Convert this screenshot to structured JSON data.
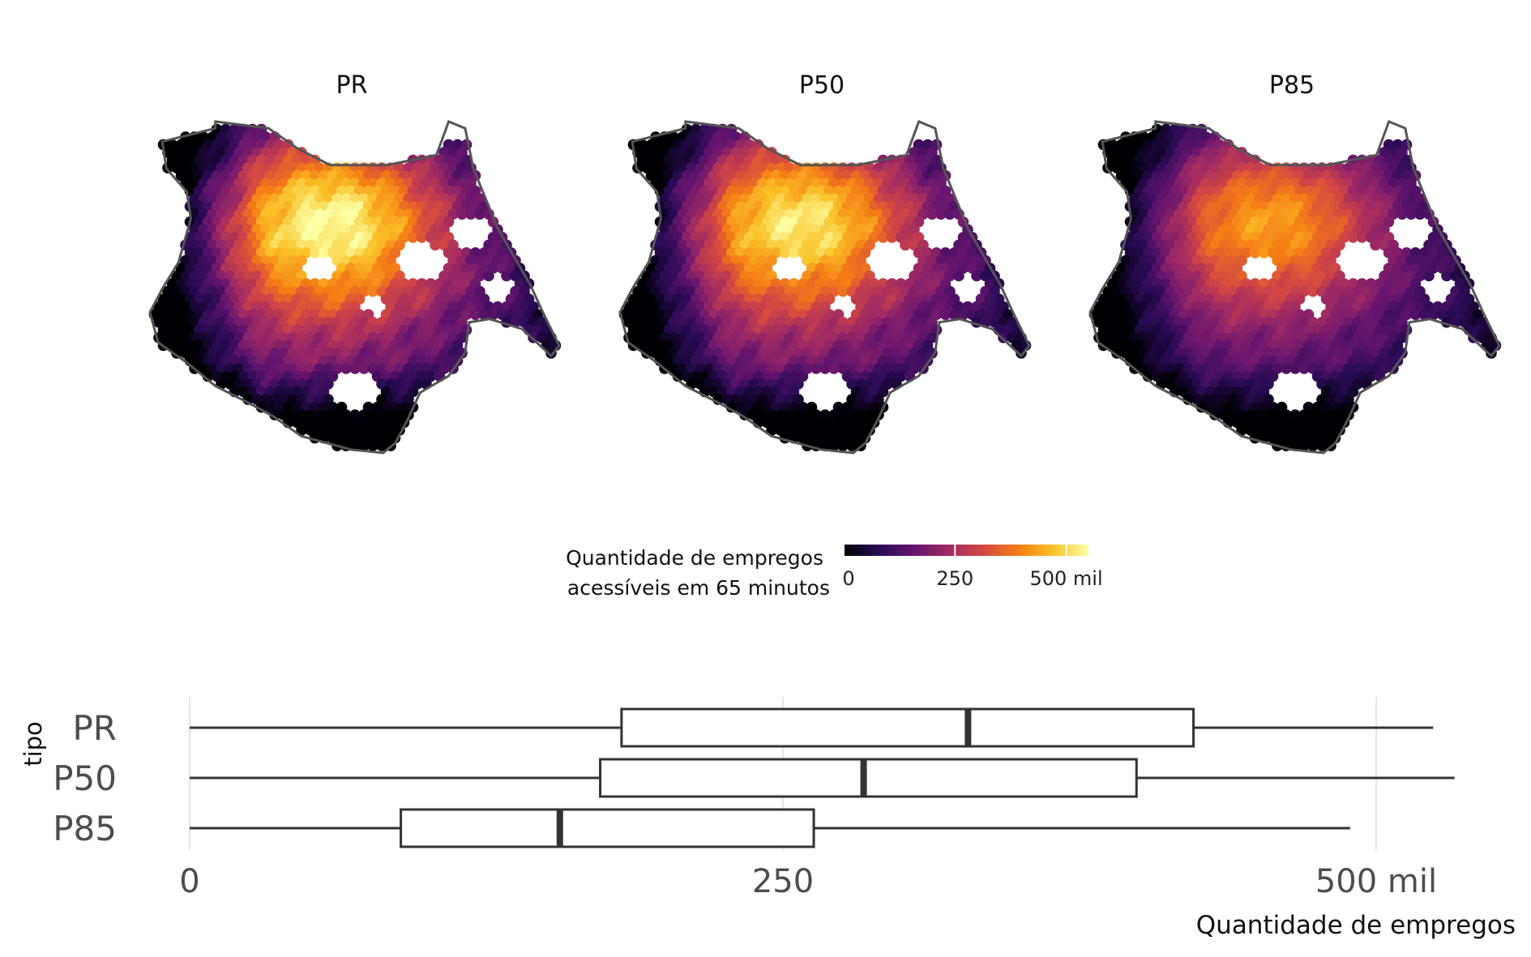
{
  "chart_data": [
    {
      "type": "heatmap",
      "description_kind": "hexagon choropleth map, three facets",
      "facets": [
        {
          "name": "PR",
          "peak_fraction": 1.0
        },
        {
          "name": "P50",
          "peak_fraction": 0.95
        },
        {
          "name": "P85",
          "peak_fraction": 0.78
        }
      ],
      "colorbar": {
        "title_line1": "Quantidade de empregos",
        "title_line2": "acessíveis em 65 minutos",
        "palette": "inferno",
        "colors": [
          "#000004",
          "#280b54",
          "#65156e",
          "#9f2a63",
          "#d44842",
          "#f57d15",
          "#fac228",
          "#fcffa4"
        ],
        "range": [
          0,
          550
        ],
        "ticks": [
          {
            "value": 0,
            "label": "0"
          },
          {
            "value": 250,
            "label": "250"
          },
          {
            "value": 500,
            "label": "500 mil"
          }
        ]
      }
    },
    {
      "type": "box",
      "xlabel": "Quantidade de empregos",
      "ylabel": "tipo",
      "xlim": [
        0,
        530
      ],
      "x_ticks": [
        {
          "value": 0,
          "label": "0"
        },
        {
          "value": 250,
          "label": "250"
        },
        {
          "value": 500,
          "label": "500 mil"
        }
      ],
      "grid": true,
      "categories": [
        "PR",
        "P50",
        "P85"
      ],
      "boxes": [
        {
          "name": "PR",
          "min": 0,
          "q1": 182,
          "median": 328,
          "q3": 423,
          "max": 524
        },
        {
          "name": "P50",
          "min": 0,
          "q1": 173,
          "median": 284,
          "q3": 399,
          "max": 533
        },
        {
          "name": "P85",
          "min": 0,
          "q1": 89,
          "median": 156,
          "q3": 263,
          "max": 489
        }
      ],
      "box_color": "#333333"
    }
  ]
}
